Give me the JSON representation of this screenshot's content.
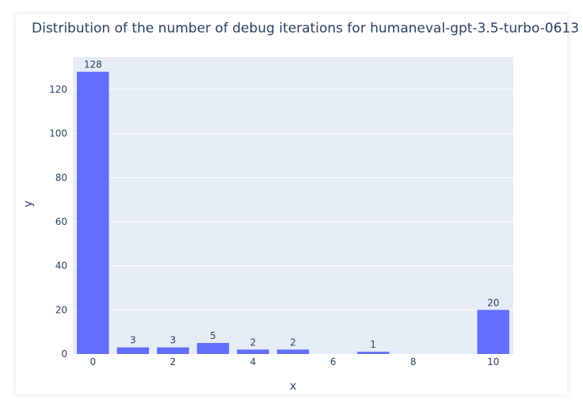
{
  "chart_data": {
    "type": "bar",
    "title": "Distribution of the number of debug iterations for humaneval-gpt-3.5-turbo-0613",
    "xlabel": "x",
    "ylabel": "y",
    "x": [
      0,
      1,
      2,
      3,
      4,
      5,
      6,
      7,
      8,
      9,
      10
    ],
    "values": [
      128,
      3,
      3,
      5,
      2,
      2,
      0,
      1,
      0,
      0,
      20
    ],
    "data_labels": [
      "128",
      "3",
      "3",
      "5",
      "2",
      "2",
      "",
      "1",
      "",
      "",
      "20"
    ],
    "xticks": [
      "0",
      "2",
      "4",
      "6",
      "8",
      "10"
    ],
    "yticks": [
      "0",
      "20",
      "40",
      "60",
      "80",
      "100",
      "120"
    ],
    "ylim": [
      0,
      134.7
    ],
    "xlim": [
      -0.5,
      10.5
    ],
    "grid": true,
    "colors": {
      "bar": "#636efa",
      "plot_background": "#e5ecf6",
      "grid": "#ffffff",
      "text": "#2a3f5f"
    }
  }
}
